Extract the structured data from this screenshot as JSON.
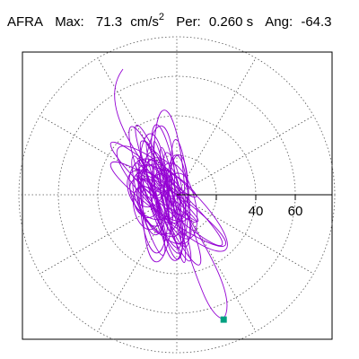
{
  "header": {
    "station": "AFRA",
    "max_label": "Max:",
    "max_value": "71.3",
    "max_unit": "cm/s",
    "max_unit_exp": "2",
    "per_label": "Per:",
    "per_value": "0.260 s",
    "ang_label": "Ang:",
    "ang_value": "-64.3"
  },
  "chart_data": {
    "type": "polar-hodogram",
    "radial_ticks": [
      20,
      40,
      60
    ],
    "radial_tick_labels": [
      "40",
      "60"
    ],
    "max_radius": 80,
    "angle_deg": -64.3,
    "peak": 71.3,
    "end_point": [
      28,
      -60
    ],
    "grid": true,
    "colors": {
      "trace": "#9400d3",
      "marker": "#00a080",
      "grid": "#555555",
      "axis": "#000000"
    }
  }
}
